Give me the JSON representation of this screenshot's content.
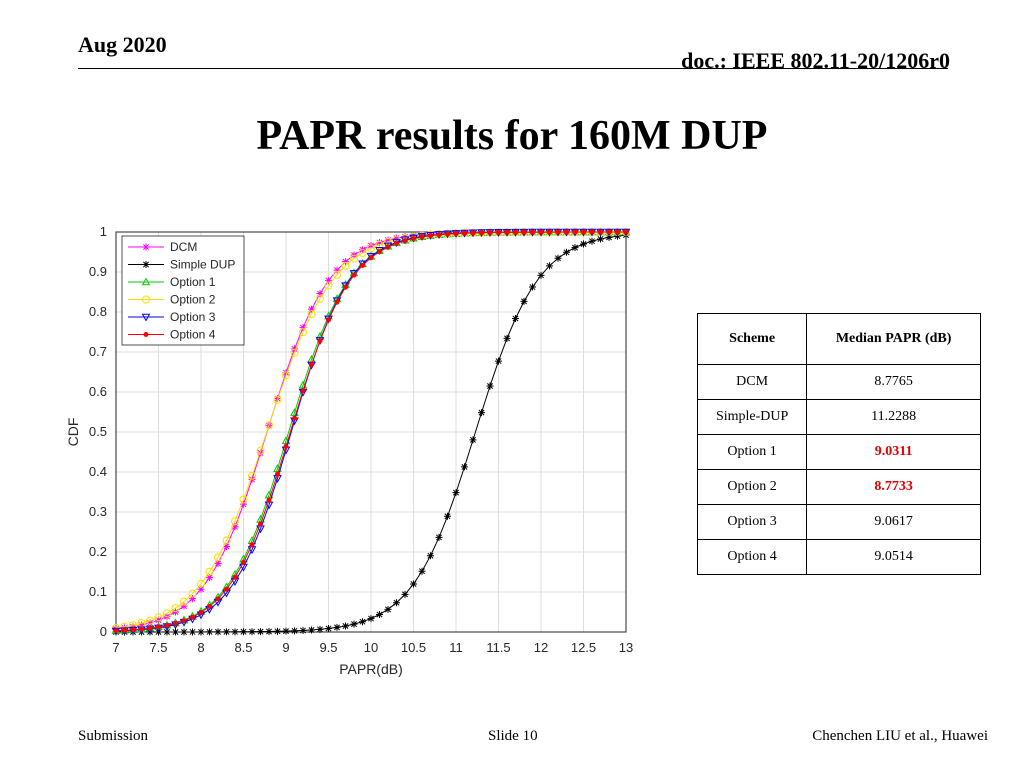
{
  "header": {
    "date": "Aug 2020",
    "doc": "doc.: IEEE 802.11-20/1206r0"
  },
  "title": "PAPR results for 160M DUP",
  "table": {
    "headers": [
      "Scheme",
      "Median PAPR (dB)"
    ],
    "rows": [
      {
        "scheme": "DCM",
        "value": "8.7765",
        "highlight": false
      },
      {
        "scheme": "Simple-DUP",
        "value": "11.2288",
        "highlight": false
      },
      {
        "scheme": "Option 1",
        "value": "9.0311",
        "highlight": true
      },
      {
        "scheme": "Option 2",
        "value": "8.7733",
        "highlight": true
      },
      {
        "scheme": "Option 3",
        "value": "9.0617",
        "highlight": false
      },
      {
        "scheme": "Option 4",
        "value": "9.0514",
        "highlight": false
      }
    ]
  },
  "footer": {
    "left": "Submission",
    "center": "Slide 10",
    "right": "Chenchen LIU et al., Huawei"
  },
  "chart_data": {
    "type": "line",
    "title": "",
    "xlabel": "PAPR(dB)",
    "ylabel": "CDF",
    "xlim": [
      7,
      13
    ],
    "ylim": [
      0,
      1
    ],
    "xticks": [
      7,
      7.5,
      8,
      8.5,
      9,
      9.5,
      10,
      10.5,
      11,
      11.5,
      12,
      12.5,
      13
    ],
    "yticks": [
      0,
      0.1,
      0.2,
      0.3,
      0.4,
      0.5,
      0.6,
      0.7,
      0.8,
      0.9,
      1
    ],
    "grid": true,
    "legend_position": "top-left",
    "series": [
      {
        "name": "DCM",
        "color": "#ff00ff",
        "marker": "star",
        "median": 8.7765,
        "spread": 0.62
      },
      {
        "name": "Simple DUP",
        "color": "#000000",
        "marker": "asterisk",
        "median": 11.2288,
        "spread": 0.62
      },
      {
        "name": "Option 1",
        "color": "#00cc00",
        "marker": "triangle-up",
        "median": 9.0311,
        "spread": 0.6
      },
      {
        "name": "Option 2",
        "color": "#ffdd00",
        "marker": "circle",
        "median": 8.7733,
        "spread": 0.66
      },
      {
        "name": "Option 3",
        "color": "#0000ff",
        "marker": "triangle-down",
        "median": 9.0617,
        "spread": 0.58
      },
      {
        "name": "Option 4",
        "color": "#ff0000",
        "marker": "dot",
        "median": 9.0514,
        "spread": 0.6
      }
    ]
  }
}
